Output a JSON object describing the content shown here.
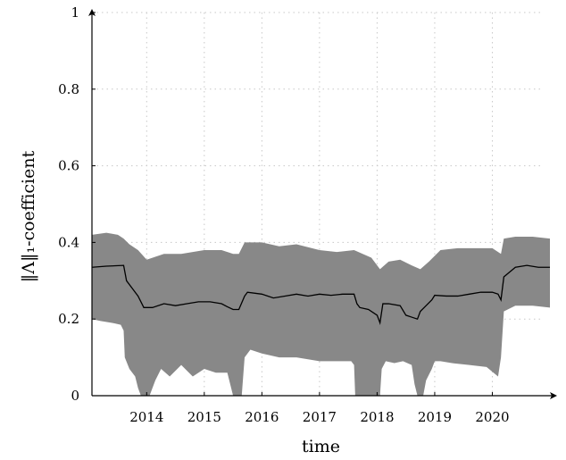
{
  "chart_data": {
    "type": "area",
    "xlabel": "time",
    "ylabel": "‖Λ‖₁-coefficient",
    "xlim": [
      2013.05,
      2021.0
    ],
    "ylim": [
      0,
      1
    ],
    "x_ticks": [
      2014,
      2015,
      2016,
      2017,
      2018,
      2019,
      2020
    ],
    "x_tick_labels": [
      "2014",
      "2015",
      "2016",
      "2017",
      "2018",
      "2019",
      "2020"
    ],
    "y_ticks": [
      0,
      0.2,
      0.4,
      0.6,
      0.8,
      1
    ],
    "y_tick_labels": [
      "0",
      "0.2",
      "0.4",
      "0.6",
      "0.8",
      "1"
    ],
    "grid": true,
    "colors": {
      "band": "#888888",
      "line": "#000000"
    },
    "series": [
      {
        "role": "median-line",
        "x": [
          2013.05,
          2013.3,
          2013.6,
          2013.65,
          2013.75,
          2013.85,
          2013.95,
          2014.1,
          2014.3,
          2014.5,
          2014.7,
          2014.9,
          2015.1,
          2015.3,
          2015.4,
          2015.5,
          2015.6,
          2015.7,
          2015.75,
          2016.0,
          2016.2,
          2016.4,
          2016.6,
          2016.8,
          2017.0,
          2017.2,
          2017.4,
          2017.6,
          2017.65,
          2017.7,
          2017.85,
          2018.0,
          2018.05,
          2018.1,
          2018.2,
          2018.4,
          2018.5,
          2018.6,
          2018.7,
          2018.75,
          2018.85,
          2018.95,
          2019.0,
          2019.2,
          2019.4,
          2019.6,
          2019.8,
          2020.0,
          2020.1,
          2020.15,
          2020.2,
          2020.4,
          2020.6,
          2020.8,
          2021.0
        ],
        "y": [
          0.335,
          0.338,
          0.34,
          0.3,
          0.28,
          0.26,
          0.23,
          0.23,
          0.24,
          0.235,
          0.24,
          0.245,
          0.245,
          0.24,
          0.232,
          0.225,
          0.225,
          0.26,
          0.27,
          0.265,
          0.255,
          0.26,
          0.265,
          0.26,
          0.265,
          0.262,
          0.265,
          0.265,
          0.24,
          0.23,
          0.225,
          0.21,
          0.19,
          0.24,
          0.24,
          0.235,
          0.21,
          0.205,
          0.2,
          0.22,
          0.235,
          0.25,
          0.262,
          0.26,
          0.26,
          0.265,
          0.27,
          0.27,
          0.265,
          0.25,
          0.31,
          0.335,
          0.34,
          0.335,
          0.335
        ]
      },
      {
        "role": "band-upper",
        "x": [
          2013.05,
          2013.3,
          2013.5,
          2013.6,
          2013.7,
          2013.85,
          2014.0,
          2014.3,
          2014.6,
          2015.0,
          2015.3,
          2015.5,
          2015.6,
          2015.7,
          2016.0,
          2016.3,
          2016.6,
          2017.0,
          2017.3,
          2017.6,
          2017.75,
          2017.9,
          2018.05,
          2018.2,
          2018.4,
          2018.6,
          2018.75,
          2018.9,
          2019.1,
          2019.4,
          2019.7,
          2020.0,
          2020.15,
          2020.2,
          2020.4,
          2020.7,
          2021.0
        ],
        "y": [
          0.42,
          0.425,
          0.42,
          0.41,
          0.395,
          0.38,
          0.355,
          0.37,
          0.37,
          0.38,
          0.38,
          0.37,
          0.37,
          0.4,
          0.4,
          0.39,
          0.395,
          0.38,
          0.375,
          0.38,
          0.37,
          0.36,
          0.33,
          0.35,
          0.355,
          0.34,
          0.33,
          0.35,
          0.38,
          0.385,
          0.385,
          0.385,
          0.37,
          0.41,
          0.415,
          0.415,
          0.41
        ]
      },
      {
        "role": "band-lower",
        "x": [
          2013.05,
          2013.2,
          2013.4,
          2013.55,
          2013.6,
          2013.62,
          2013.7,
          2013.8,
          2013.85,
          2013.9,
          2014.05,
          2014.15,
          2014.25,
          2014.4,
          2014.6,
          2014.8,
          2015.0,
          2015.2,
          2015.4,
          2015.45,
          2015.5,
          2015.65,
          2015.7,
          2015.8,
          2016.0,
          2016.3,
          2016.6,
          2017.0,
          2017.3,
          2017.55,
          2017.6,
          2017.62,
          2018.05,
          2018.08,
          2018.15,
          2018.3,
          2018.45,
          2018.6,
          2018.65,
          2018.7,
          2018.8,
          2018.85,
          2018.95,
          2019.0,
          2019.1,
          2019.3,
          2019.6,
          2019.9,
          2020.1,
          2020.15,
          2020.2,
          2020.4,
          2020.7,
          2021.0
        ],
        "y": [
          0.2,
          0.195,
          0.19,
          0.185,
          0.17,
          0.1,
          0.07,
          0.05,
          0.02,
          0.0,
          0.0,
          0.04,
          0.07,
          0.05,
          0.08,
          0.05,
          0.07,
          0.06,
          0.06,
          0.03,
          0.0,
          0.0,
          0.1,
          0.12,
          0.11,
          0.1,
          0.1,
          0.09,
          0.09,
          0.09,
          0.08,
          0.0,
          0.0,
          0.07,
          0.09,
          0.085,
          0.09,
          0.08,
          0.03,
          0.0,
          0.0,
          0.04,
          0.07,
          0.09,
          0.09,
          0.085,
          0.08,
          0.075,
          0.05,
          0.1,
          0.22,
          0.235,
          0.235,
          0.23
        ]
      }
    ]
  }
}
